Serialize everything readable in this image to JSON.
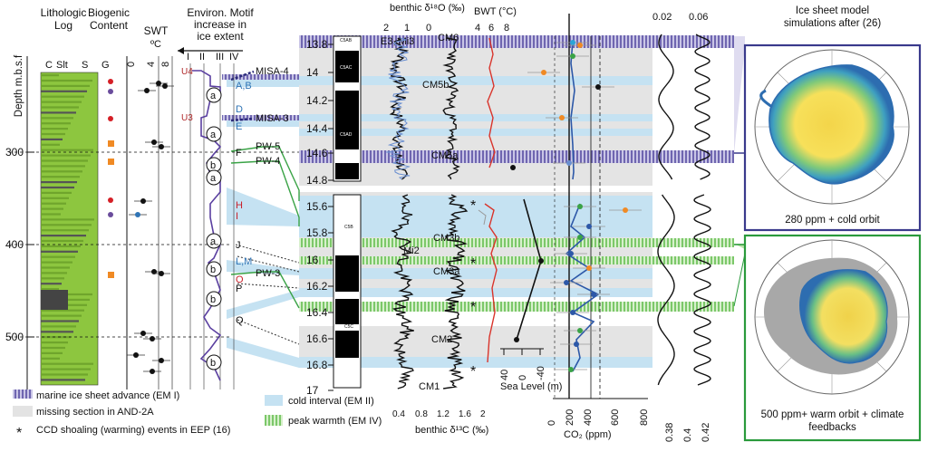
{
  "chart_data": [
    {
      "type": "composite-stratigraphy",
      "panels": {
        "lithology": {
          "title_line1": "Lithologic",
          "title_line2": "Log",
          "grain_labels": [
            "C",
            "Slt",
            "S",
            "G"
          ]
        },
        "biogenic": {
          "title_line1": "Biogenic",
          "title_line2": "Content"
        },
        "swt": {
          "title": "SWT",
          "unit": "ºC",
          "ticks": [
            "0",
            "4",
            "8"
          ]
        },
        "motif": {
          "title_line1": "Environ. Motif",
          "title_line2": "increase in",
          "title_line3": "ice extent",
          "numerals": [
            "I",
            "II",
            "III",
            "IV"
          ],
          "circle_labels": [
            "a",
            "a",
            "b",
            "a",
            "a",
            "b",
            "b",
            "b"
          ],
          "unit_labels": [
            "U4",
            "U3"
          ]
        },
        "d18o": {
          "title": "benthic δ¹⁸O (‰)",
          "ticks": [
            "2",
            "1",
            "0"
          ],
          "labels": [
            "E3, Mi3",
            "Mi2"
          ]
        },
        "d13c": {
          "title": "benthic δ¹³C (‰)",
          "ticks": [
            "0.4",
            "0.8",
            "1.2",
            "1.6",
            "2"
          ],
          "labels": [
            "CM6",
            "CM5b",
            "CM5a",
            "CM3b",
            "CM3a",
            "CM2",
            "CM1"
          ]
        },
        "bwt": {
          "title": "BWT (°C)",
          "ticks": [
            "4",
            "6",
            "8"
          ]
        },
        "sea_level": {
          "label": "Sea Level (m)",
          "ticks": [
            "40",
            "0",
            "-40"
          ]
        },
        "co2": {
          "label": "CO₂ (ppm)",
          "ticks": [
            "0",
            "400",
            "800"
          ],
          "tick_extra": "200",
          "tick_extra2": "600"
        },
        "insolation": {
          "ticks_top": [
            "0.02",
            "0.06"
          ],
          "ticks_bottom": [
            "0.38",
            "0.4",
            "0.42"
          ]
        }
      },
      "depth_axis": {
        "label": "Depth m.b.s.f",
        "ticks": [
          300,
          400,
          500
        ]
      },
      "age_axis": {
        "ticks_upper": [
          "13.8",
          "14",
          "14.2",
          "14.4",
          "14.6",
          "14.8"
        ],
        "ticks_lower": [
          "15.6",
          "15.8",
          "16",
          "16.2",
          "16.4",
          "16.6",
          "16.8",
          "17"
        ]
      },
      "chrons": [
        "C5AB",
        "C5AC",
        "C5AD",
        "C5B",
        "C5C"
      ],
      "events": [
        "MISA-4",
        "MISA-3",
        "PW-5",
        "PW-4",
        "PW-3"
      ],
      "event_letters": [
        "A,B",
        "D",
        "E",
        "F",
        "H",
        "I",
        "J",
        "L,M",
        "O",
        "P",
        "Q"
      ],
      "legend": [
        {
          "key": "marine ice sheet advance (EM I)",
          "style": "hatch-purple"
        },
        {
          "key": "missing section in AND-2A",
          "style": "grey"
        },
        {
          "key": "CCD shoaling (warming) events in EEP (16)",
          "style": "asterisk"
        },
        {
          "key": "cold interval (EM II)",
          "style": "blue"
        },
        {
          "key": "peak warmth (EM IV)",
          "style": "hatch-green"
        }
      ],
      "colors": {
        "ice_advance": "#7b74b5",
        "cold": "#c5e2f2",
        "warm": "#8fd47b",
        "missing": "#e3e3e3",
        "litho": "#8dc63f",
        "bwt_line": "#d9342b",
        "co2_line": "#2d58a8"
      }
    }
  ],
  "simulations": {
    "header_line1": "Ice sheet model",
    "header_line2": "simulations after (26)",
    "top_caption": "280 ppm + cold orbit",
    "bottom_caption_line1": "500 ppm+ warm orbit + climate",
    "bottom_caption_line2": "feedbacks",
    "top_frame_color": "#3a3a8c",
    "bottom_frame_color": "#2a9a3c"
  }
}
